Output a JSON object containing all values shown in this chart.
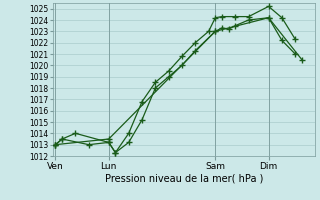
{
  "bg_color": "#cce8e8",
  "grid_color": "#aacccc",
  "line_color": "#1a5c1a",
  "marker_color": "#1a5c1a",
  "xlabel": "Pression niveau de la mer( hPa )",
  "ylim": [
    1012,
    1025.5
  ],
  "yticks": [
    1012,
    1013,
    1014,
    1015,
    1016,
    1017,
    1018,
    1019,
    1020,
    1021,
    1022,
    1023,
    1024,
    1025
  ],
  "day_labels": [
    "Ven",
    "Lun",
    "Sam",
    "Dim"
  ],
  "day_positions": [
    0.0,
    4.0,
    12.0,
    16.0
  ],
  "xlim": [
    -0.2,
    19.5
  ],
  "line1_x": [
    0.0,
    0.5,
    1.5,
    4.0,
    4.5,
    5.5,
    6.5,
    7.5,
    8.5,
    9.5,
    10.5,
    12.0,
    12.5,
    13.0,
    13.5,
    14.5,
    16.0,
    17.0,
    18.0
  ],
  "line1_y": [
    1013.0,
    1013.5,
    1014.0,
    1013.2,
    1012.3,
    1013.2,
    1015.2,
    1018.0,
    1019.0,
    1020.0,
    1021.3,
    1023.0,
    1023.3,
    1023.2,
    1023.5,
    1024.0,
    1024.2,
    1022.2,
    1021.0
  ],
  "line2_x": [
    0.0,
    0.5,
    2.5,
    4.0,
    4.5,
    5.5,
    6.5,
    7.5,
    8.5,
    9.5,
    10.5,
    11.5,
    12.0,
    12.5,
    13.5,
    14.5,
    16.0,
    17.0,
    18.0
  ],
  "line2_y": [
    1013.0,
    1013.5,
    1013.0,
    1013.2,
    1012.3,
    1014.0,
    1016.8,
    1018.5,
    1019.5,
    1020.8,
    1022.0,
    1023.0,
    1024.2,
    1024.3,
    1024.3,
    1024.3,
    1025.2,
    1024.2,
    1022.3
  ],
  "line3_x": [
    0.0,
    4.0,
    12.0,
    16.0,
    18.5
  ],
  "line3_y": [
    1013.0,
    1013.5,
    1023.0,
    1024.2,
    1020.5
  ]
}
